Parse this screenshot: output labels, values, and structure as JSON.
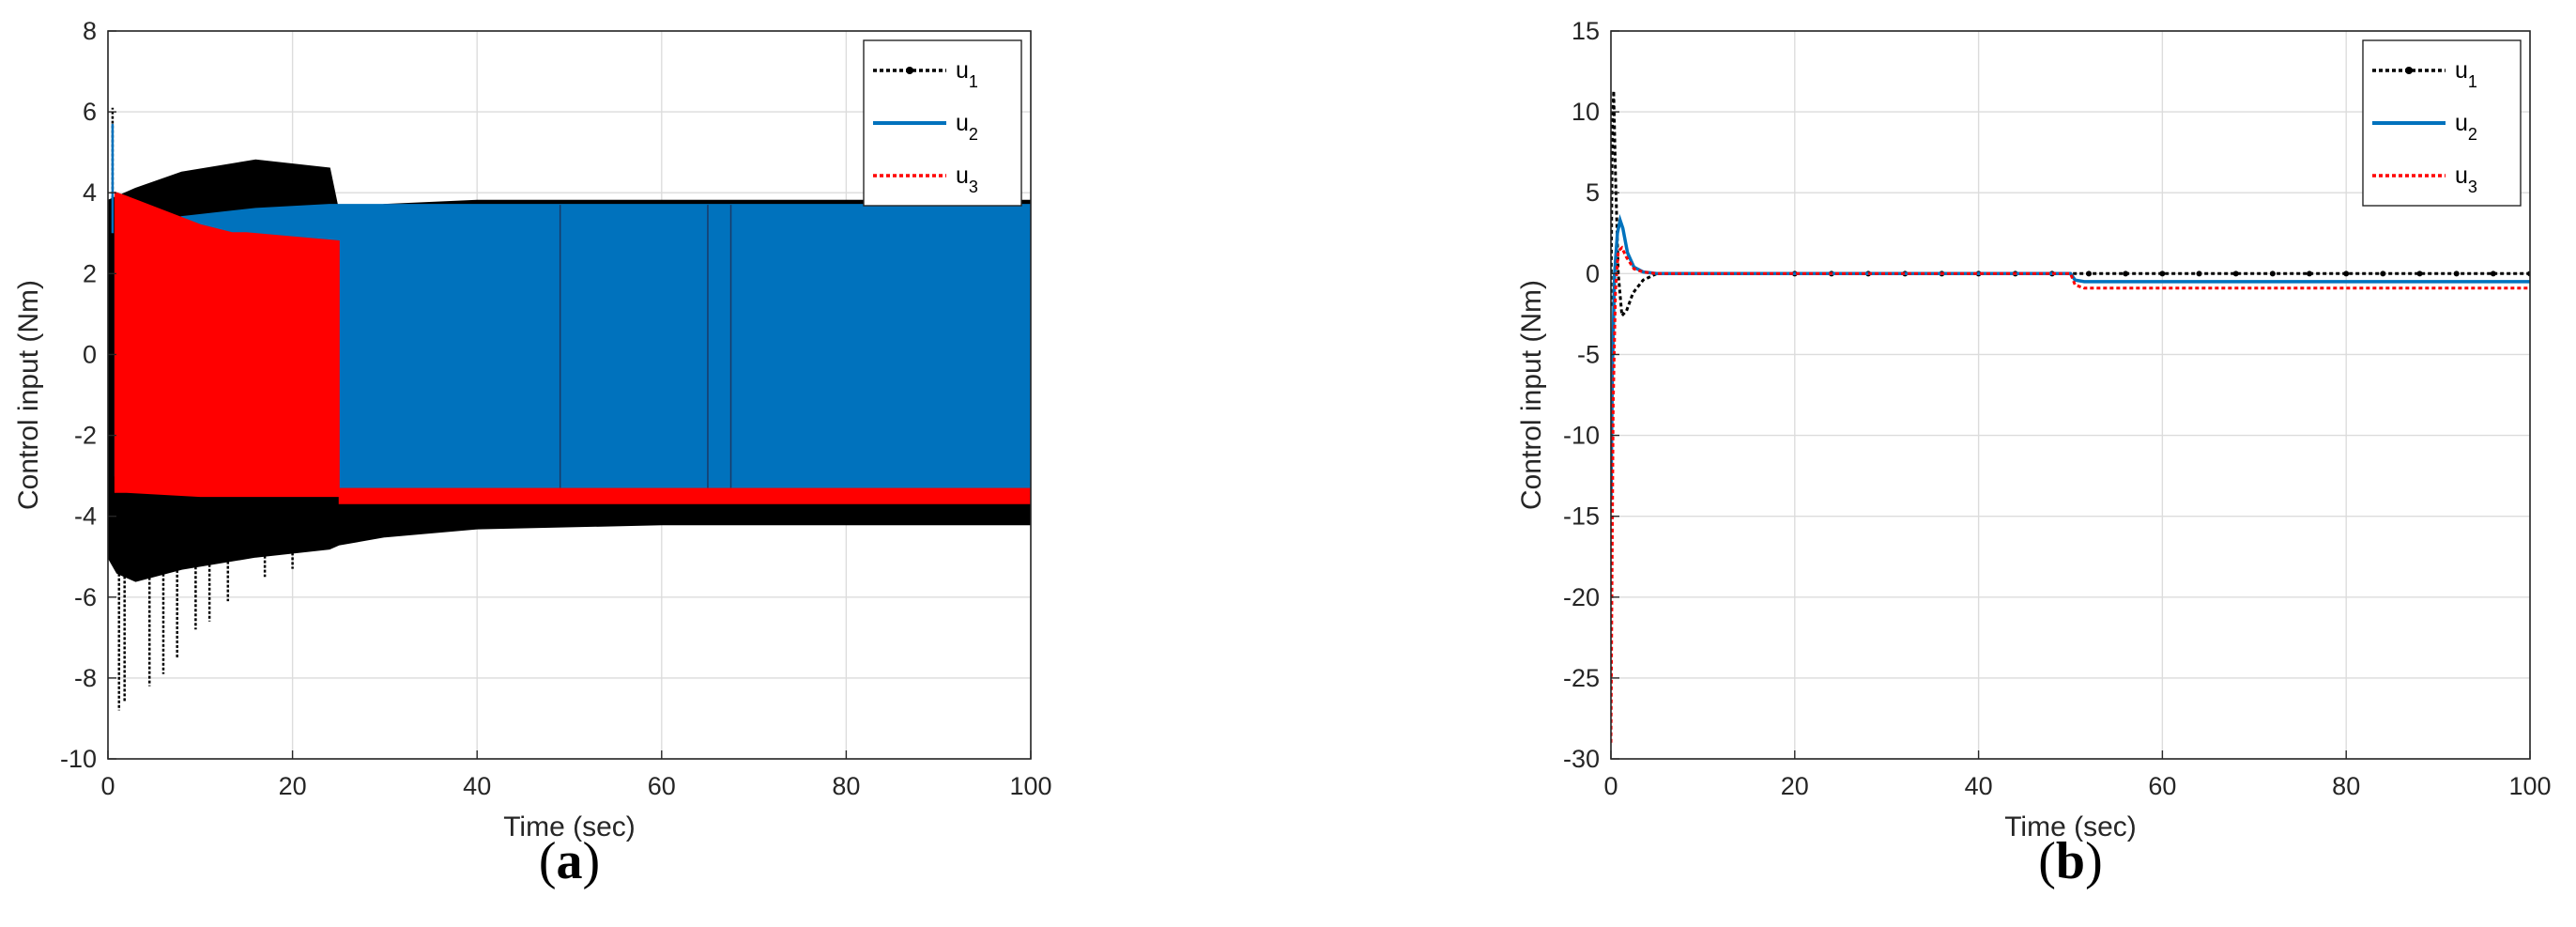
{
  "chart_data": [
    {
      "type": "line",
      "panel_label": "a",
      "xlabel": "Time (sec)",
      "ylabel": "Control input (Nm)",
      "xlim": [
        0,
        100
      ],
      "ylim": [
        -10,
        8
      ],
      "xticks": [
        0,
        20,
        40,
        60,
        80,
        100
      ],
      "yticks": [
        -10,
        -8,
        -6,
        -4,
        -2,
        0,
        2,
        4,
        6,
        8
      ],
      "grid": true,
      "legend_position": "top-right",
      "series": [
        {
          "name": "u_1",
          "label_base": "u",
          "label_sub": "1",
          "color": "#000000",
          "style": "dotted-marker",
          "envelope": {
            "x": [
              0,
              1,
              3,
              8,
              16,
              24,
              25,
              30,
              40,
              60,
              80,
              100
            ],
            "upper": [
              3.8,
              3.9,
              4.1,
              4.5,
              4.8,
              4.6,
              3.5,
              3.7,
              3.8,
              3.8,
              3.8,
              3.8
            ],
            "lower": [
              -5.0,
              -5.4,
              -5.6,
              -5.3,
              -5.0,
              -4.8,
              -4.7,
              -4.5,
              -4.3,
              -4.2,
              -4.2,
              -4.2
            ]
          },
          "spikes": [
            {
              "x": 0.5,
              "y": 6.1
            },
            {
              "x": 1.2,
              "y": -8.8
            },
            {
              "x": 1.8,
              "y": -8.6
            },
            {
              "x": 4.5,
              "y": -8.2
            },
            {
              "x": 6.0,
              "y": -7.9
            },
            {
              "x": 7.5,
              "y": -7.5
            },
            {
              "x": 9.5,
              "y": -6.8
            },
            {
              "x": 11.0,
              "y": -6.6
            },
            {
              "x": 13.0,
              "y": -6.1
            },
            {
              "x": 17.0,
              "y": -5.5
            },
            {
              "x": 20.0,
              "y": -5.3
            }
          ]
        },
        {
          "name": "u_2",
          "label_base": "u",
          "label_sub": "2",
          "color": "#0072BD",
          "style": "solid",
          "envelope": {
            "x": [
              0.8,
              3,
              8,
              16,
              24,
              25,
              30,
              40,
              60,
              80,
              100
            ],
            "upper": [
              3.0,
              3.1,
              3.4,
              3.6,
              3.7,
              3.7,
              3.7,
              3.7,
              3.7,
              3.7,
              3.7
            ],
            "lower": [
              -3.0,
              -3.2,
              -3.3,
              -3.3,
              -3.3,
              -3.3,
              -3.3,
              -3.3,
              -3.3,
              -3.3,
              -3.3
            ]
          },
          "spikes": [
            {
              "x": 0.5,
              "y": 5.7
            }
          ]
        },
        {
          "name": "u_3",
          "label_base": "u",
          "label_sub": "3",
          "color": "#FF0000",
          "style": "dotted",
          "envelope": {
            "x": [
              0.8,
              2,
              10,
              13.5,
              15,
              20,
              25
            ],
            "upper": [
              4.0,
              3.9,
              3.2,
              3.0,
              3.0,
              2.9,
              2.8
            ],
            "lower": [
              -3.4,
              -3.4,
              -3.5,
              -3.5,
              -3.5,
              -3.5,
              -3.5
            ]
          },
          "band_after": {
            "x": [
              25,
              100
            ],
            "upper": -3.3,
            "lower": -3.7
          }
        }
      ]
    },
    {
      "type": "line",
      "panel_label": "b",
      "xlabel": "Time (sec)",
      "ylabel": "Control input (Nm)",
      "xlim": [
        0,
        100
      ],
      "ylim": [
        -30,
        15
      ],
      "xticks": [
        0,
        20,
        40,
        60,
        80,
        100
      ],
      "yticks": [
        -30,
        -25,
        -20,
        -15,
        -10,
        -5,
        0,
        5,
        10,
        15
      ],
      "grid": true,
      "legend_position": "top-right",
      "series": [
        {
          "name": "u_1",
          "label_base": "u",
          "label_sub": "1",
          "color": "#000000",
          "style": "dotted-marker",
          "x": [
            0,
            0.15,
            0.3,
            0.5,
            0.8,
            1.2,
            1.7,
            2.4,
            3.5,
            5,
            8,
            20,
            40,
            50,
            60,
            80,
            100
          ],
          "y": [
            -2,
            9,
            11.3,
            6,
            0,
            -2.6,
            -2.3,
            -1.2,
            -0.4,
            0,
            0,
            0,
            0,
            0,
            0,
            0,
            0
          ]
        },
        {
          "name": "u_2",
          "label_base": "u",
          "label_sub": "2",
          "color": "#0072BD",
          "style": "solid",
          "x": [
            0,
            0.15,
            0.4,
            0.7,
            1.0,
            1.3,
            1.8,
            2.5,
            3.5,
            5,
            8,
            20,
            40,
            50,
            50.5,
            51.5,
            60,
            80,
            100
          ],
          "y": [
            -14,
            -6,
            0,
            2.5,
            3.3,
            2.8,
            1.3,
            0.4,
            0.1,
            0,
            0,
            0,
            0,
            0,
            -0.4,
            -0.5,
            -0.5,
            -0.5,
            -0.5
          ]
        },
        {
          "name": "u_3",
          "label_base": "u",
          "label_sub": "3",
          "color": "#FF0000",
          "style": "dotted",
          "x": [
            0,
            0.1,
            0.25,
            0.5,
            0.8,
            1.2,
            1.7,
            2.5,
            3.5,
            5,
            8,
            20,
            40,
            50,
            50.5,
            51.5,
            60,
            80,
            100
          ],
          "y": [
            -29,
            -20,
            -8,
            -1,
            1.4,
            1.6,
            1.0,
            0.3,
            0.1,
            0,
            0,
            0,
            0,
            0,
            -0.7,
            -0.9,
            -0.9,
            -0.9,
            -0.9
          ]
        }
      ]
    }
  ]
}
